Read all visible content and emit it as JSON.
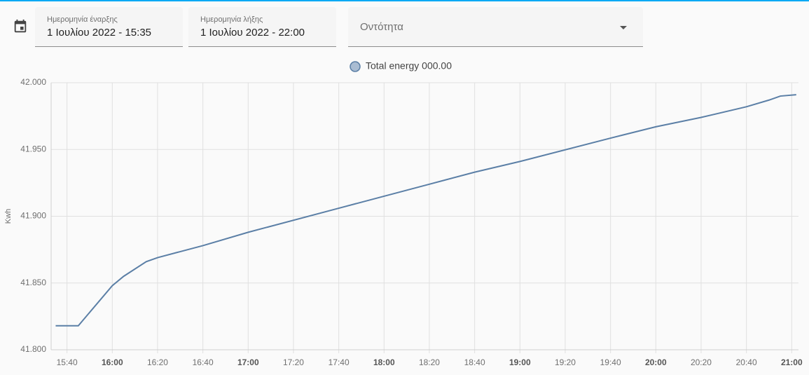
{
  "header": {
    "start_label": "Ημερομηνία έναρξης",
    "start_value": "1 Ιουλίου 2022 - 15:35",
    "end_label": "Ημερομηνία λήξης",
    "end_value": "1 Ιουλίου 2022 - 22:00",
    "entity_label": "Οντότητα"
  },
  "chart_data": {
    "type": "line",
    "y_label": "Kwh",
    "x": [
      "15:35",
      "15:45",
      "16:00",
      "16:05",
      "16:15",
      "16:20",
      "16:40",
      "17:00",
      "17:40",
      "18:00",
      "18:20",
      "18:40",
      "19:00",
      "19:40",
      "20:00",
      "20:20",
      "20:40",
      "20:50",
      "20:55",
      "21:02"
    ],
    "series": [
      {
        "name": "Total energy 000.00",
        "color": "#5b7fa6",
        "values": [
          41.818,
          41.818,
          41.848,
          41.855,
          41.866,
          41.869,
          41.878,
          41.888,
          41.906,
          41.915,
          41.924,
          41.933,
          41.941,
          41.9585,
          41.967,
          41.974,
          41.982,
          41.987,
          41.99,
          41.991
        ]
      }
    ],
    "xlim": [
      "15:33",
      "21:03"
    ],
    "xticks": [
      "15:40",
      "16:00",
      "16:20",
      "16:40",
      "17:00",
      "17:20",
      "17:40",
      "18:00",
      "18:20",
      "18:40",
      "19:00",
      "19:20",
      "19:40",
      "20:00",
      "20:20",
      "20:40",
      "21:00"
    ],
    "ylim": [
      41.8,
      42.0
    ],
    "yticks": [
      {
        "value": 41.8,
        "label": "41.800"
      },
      {
        "value": 41.85,
        "label": "41.850"
      },
      {
        "value": 41.9,
        "label": "41.900"
      },
      {
        "value": 41.95,
        "label": "41.950"
      },
      {
        "value": 42.0,
        "label": "42.000"
      }
    ],
    "grid": true
  }
}
